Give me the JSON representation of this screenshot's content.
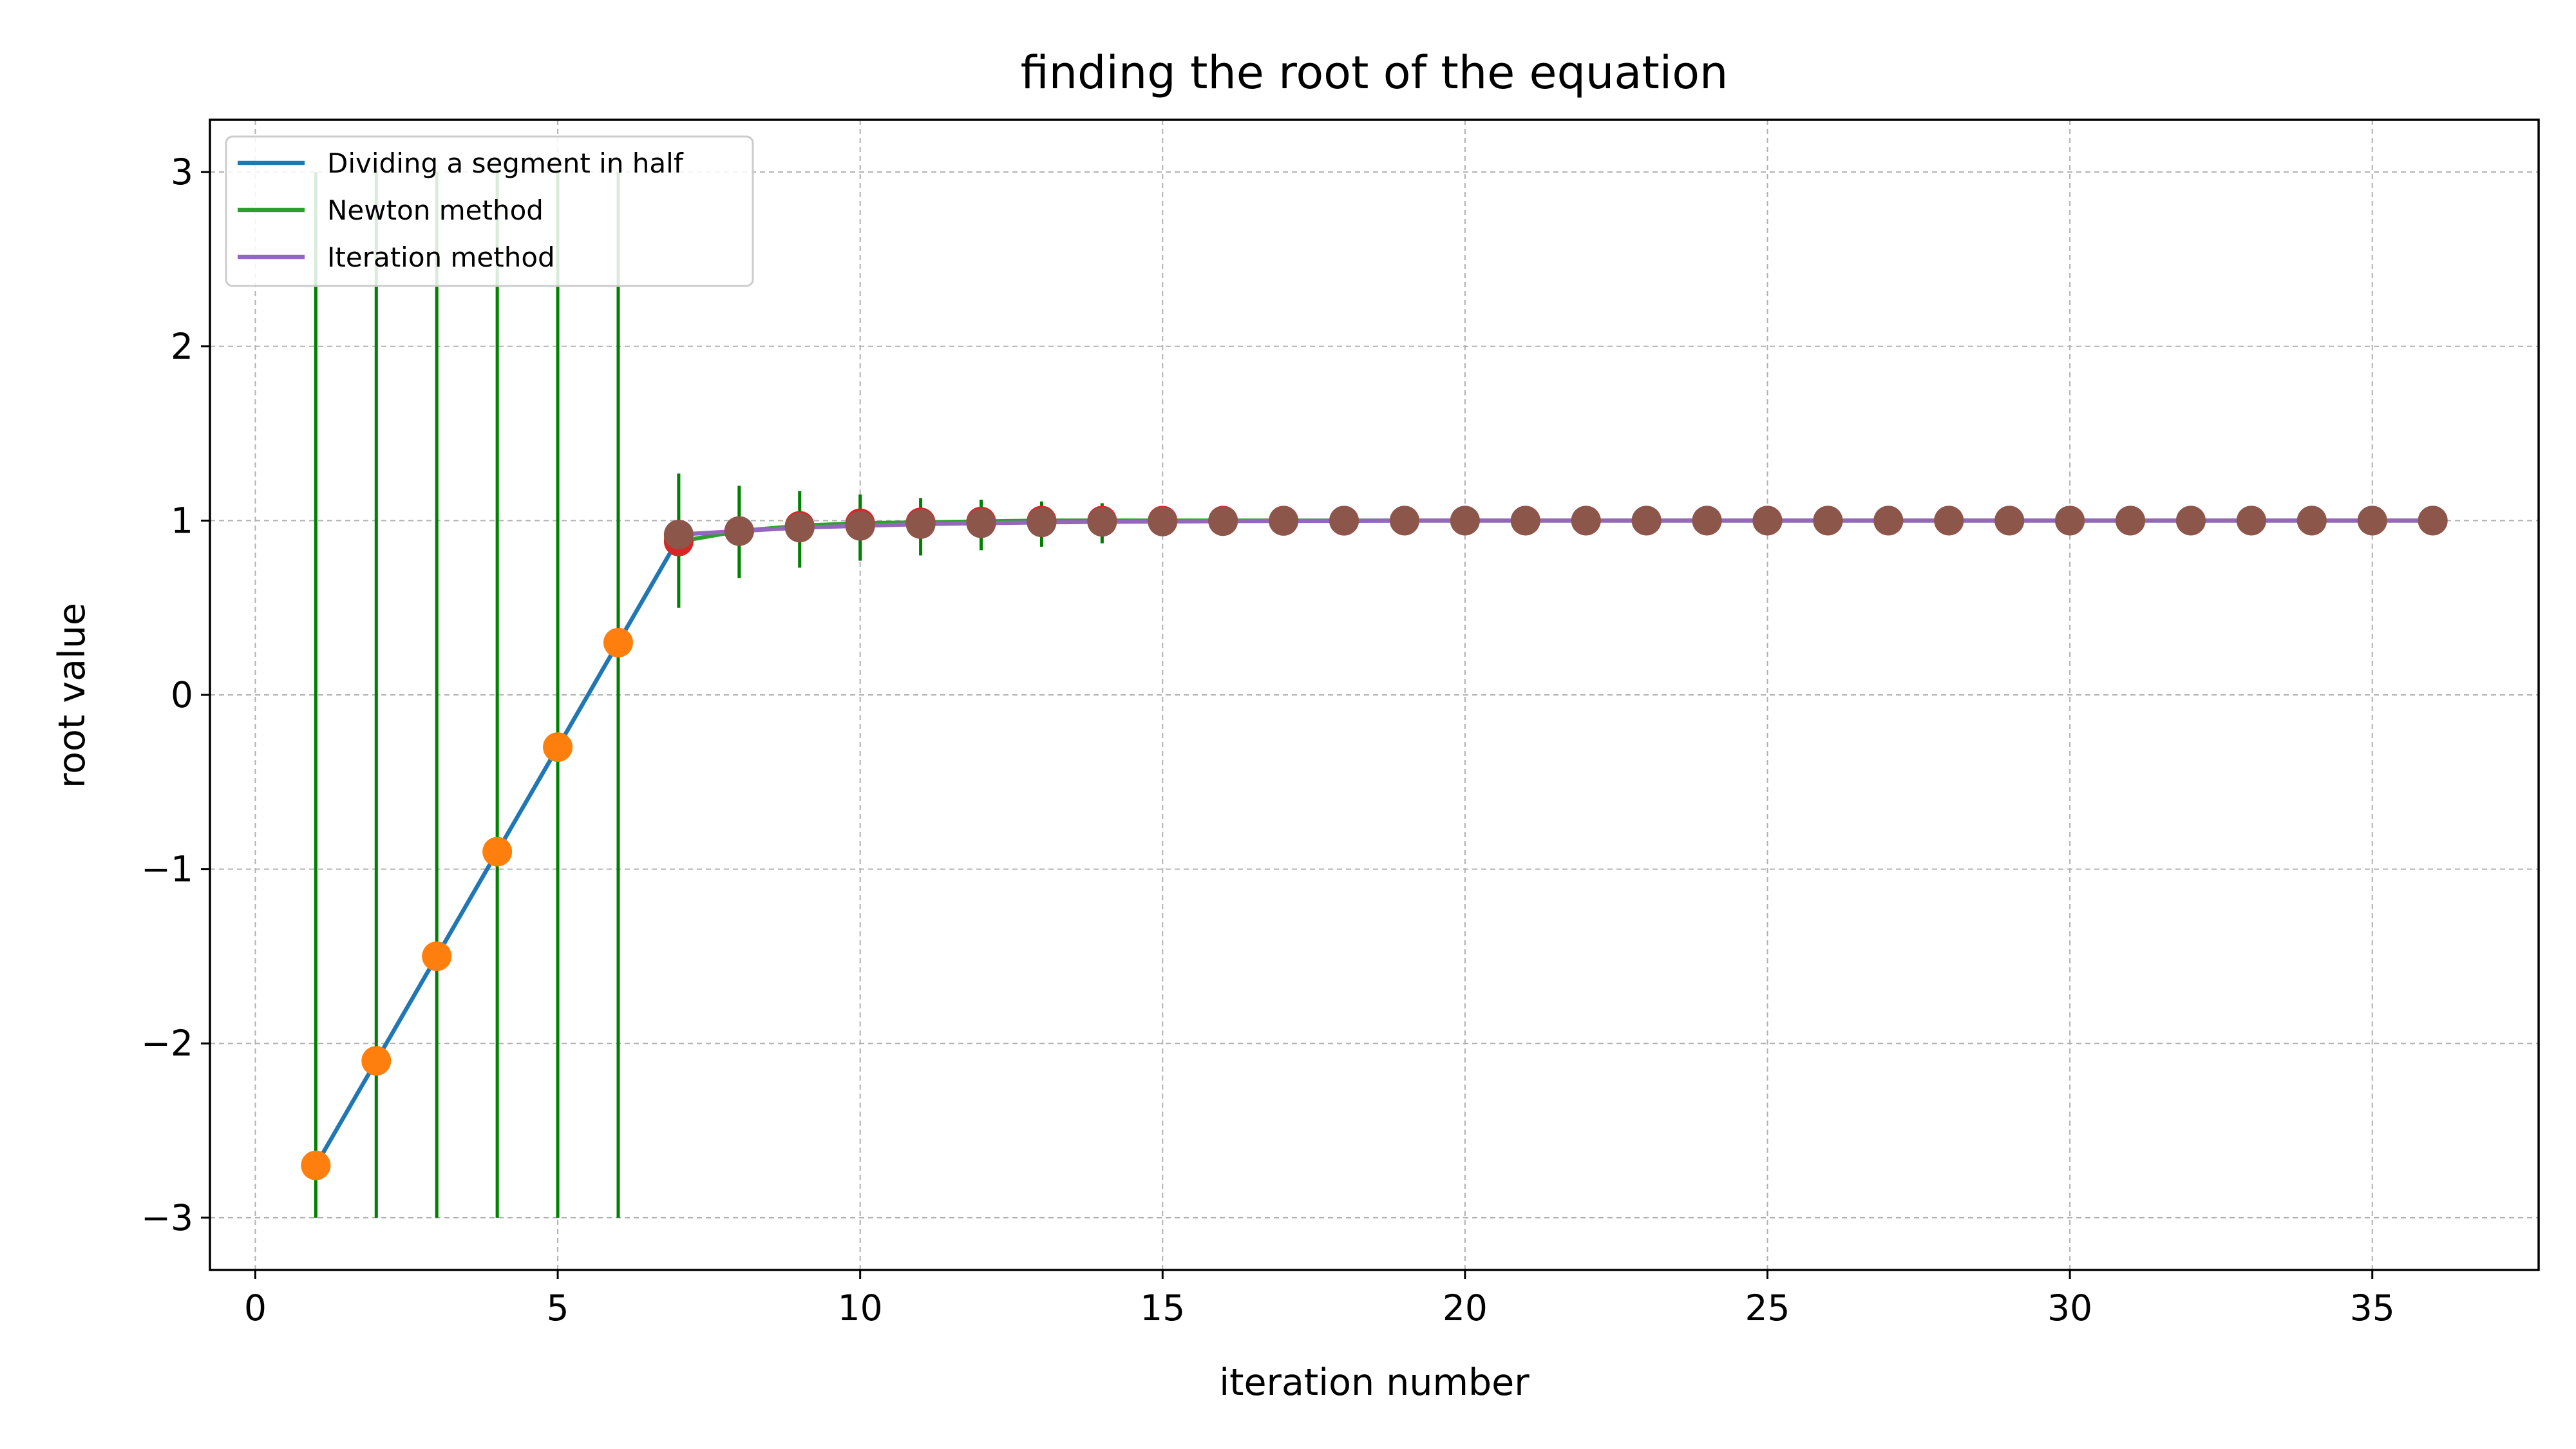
{
  "chart_data": {
    "type": "line",
    "title": "finding the root of the equation",
    "xlabel": "iteration number",
    "ylabel": "root value",
    "xlim": [
      -0.75,
      37.75
    ],
    "ylim": [
      -3.3,
      3.3
    ],
    "xticks": [
      0,
      5,
      10,
      15,
      20,
      25,
      30,
      35
    ],
    "xtick_labels": [
      "0",
      "5",
      "10",
      "15",
      "20",
      "25",
      "30",
      "35"
    ],
    "yticks": [
      -3,
      -2,
      -1,
      0,
      1,
      2,
      3
    ],
    "ytick_labels": [
      "−3",
      "−2",
      "−1",
      "0",
      "1",
      "2",
      "3"
    ],
    "grid": true,
    "legend_position": "top-left",
    "series": [
      {
        "name": "Dividing a segment in half",
        "color": "#1f77b4",
        "marker_color": "#ff7f0e",
        "x": [
          1,
          2,
          3,
          4,
          5,
          6,
          7
        ],
        "y": [
          -2.7,
          -2.1,
          -1.5,
          -0.9,
          -0.3,
          0.3,
          0.9
        ]
      },
      {
        "name": "Newton method",
        "color": "#2ca02c",
        "marker_color": "#d62728",
        "x": [
          7,
          8,
          9,
          10,
          11,
          12,
          13,
          14,
          15,
          16,
          17,
          18,
          19,
          20,
          21,
          22,
          23,
          24,
          25,
          26,
          27,
          28,
          29,
          30,
          31,
          32,
          33,
          34,
          35,
          36
        ],
        "y": [
          0.88,
          0.94,
          0.97,
          0.985,
          0.99,
          0.995,
          1.0,
          1.0,
          1.0,
          1.0,
          1.0,
          1.0,
          1.0,
          1.0,
          1.0,
          1.0,
          1.0,
          1.0,
          1.0,
          1.0,
          1.0,
          1.0,
          1.0,
          1.0,
          1.0,
          1.0,
          1.0,
          1.0,
          1.0,
          1.0
        ]
      },
      {
        "name": "Iteration method",
        "color": "#9467bd",
        "marker_color": "#8c564b",
        "x": [
          7,
          8,
          9,
          10,
          11,
          12,
          13,
          14,
          15,
          16,
          17,
          18,
          19,
          20,
          21,
          22,
          23,
          24,
          25,
          26,
          27,
          28,
          29,
          30,
          31,
          32,
          33,
          34,
          35,
          36
        ],
        "y": [
          0.92,
          0.94,
          0.96,
          0.97,
          0.98,
          0.985,
          0.99,
          0.993,
          0.995,
          0.997,
          0.998,
          0.999,
          1.0,
          1.0,
          1.0,
          1.0,
          1.0,
          1.0,
          1.0,
          1.0,
          1.0,
          1.0,
          1.0,
          1.0,
          1.0,
          1.0,
          1.0,
          1.0,
          1.0,
          1.0
        ]
      }
    ],
    "vertical_segments": {
      "color": "#008000",
      "items": [
        {
          "x": 1,
          "y0": -3,
          "y1": 3
        },
        {
          "x": 2,
          "y0": -3,
          "y1": 3
        },
        {
          "x": 3,
          "y0": -3,
          "y1": 3
        },
        {
          "x": 4,
          "y0": -3,
          "y1": 3
        },
        {
          "x": 5,
          "y0": -3,
          "y1": 3
        },
        {
          "x": 6,
          "y0": -3,
          "y1": 3
        },
        {
          "x": 7,
          "y0": 0.5,
          "y1": 1.27
        },
        {
          "x": 8,
          "y0": 0.67,
          "y1": 1.2
        },
        {
          "x": 9,
          "y0": 0.73,
          "y1": 1.17
        },
        {
          "x": 10,
          "y0": 0.77,
          "y1": 1.15
        },
        {
          "x": 11,
          "y0": 0.8,
          "y1": 1.13
        },
        {
          "x": 12,
          "y0": 0.83,
          "y1": 1.12
        },
        {
          "x": 13,
          "y0": 0.85,
          "y1": 1.11
        },
        {
          "x": 14,
          "y0": 0.87,
          "y1": 1.1
        }
      ]
    }
  }
}
